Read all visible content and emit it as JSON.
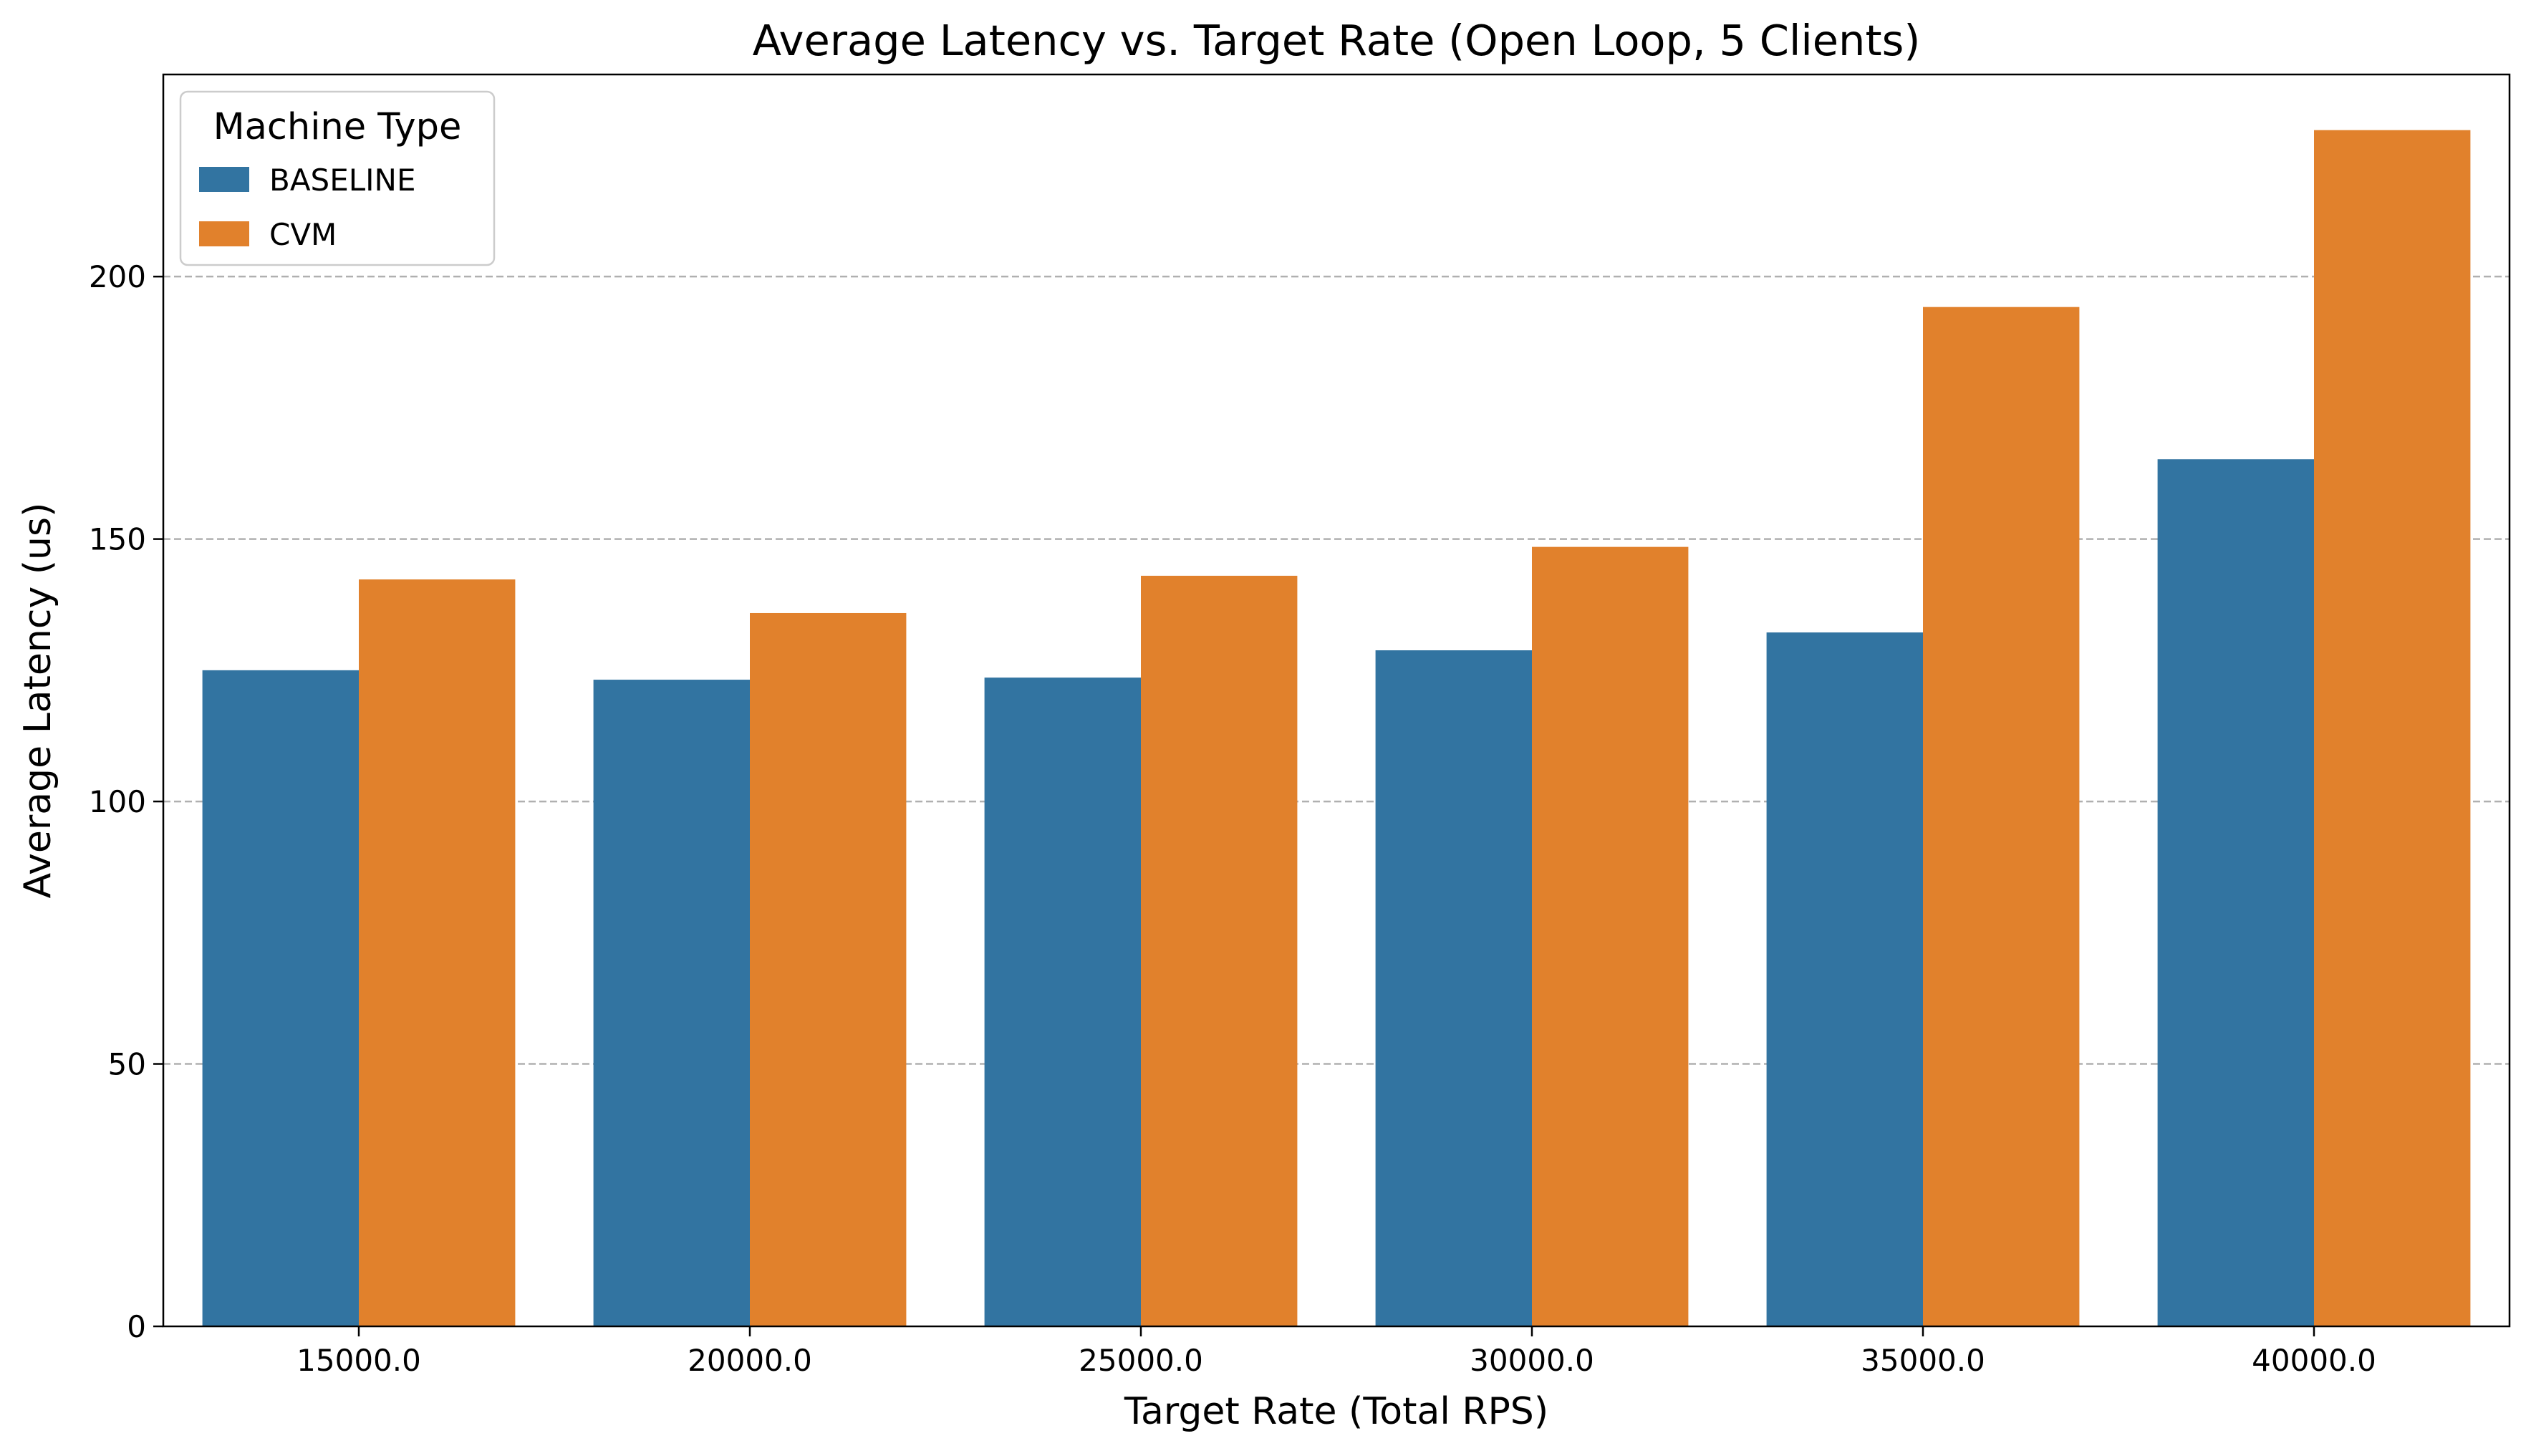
{
  "chart_data": {
    "type": "bar",
    "title": "Average Latency vs. Target Rate (Open Loop, 5 Clients)",
    "xlabel": "Target Rate (Total RPS)",
    "ylabel": "Average Latency (us)",
    "categories": [
      "15000.0",
      "20000.0",
      "25000.0",
      "30000.0",
      "35000.0",
      "40000.0"
    ],
    "series": [
      {
        "name": "BASELINE",
        "color": "#3274a1",
        "values": [
          125.0,
          123.2,
          123.6,
          128.8,
          132.2,
          165.2
        ]
      },
      {
        "name": "CVM",
        "color": "#e1812c",
        "values": [
          142.3,
          135.9,
          143.0,
          148.5,
          194.2,
          227.9
        ]
      }
    ],
    "ylim": [
      0,
      238.5
    ],
    "yticks": [
      0,
      50,
      100,
      150,
      200
    ],
    "grid": "y, dashed",
    "legend": {
      "title": "Machine Type",
      "placement": "top-left"
    }
  }
}
